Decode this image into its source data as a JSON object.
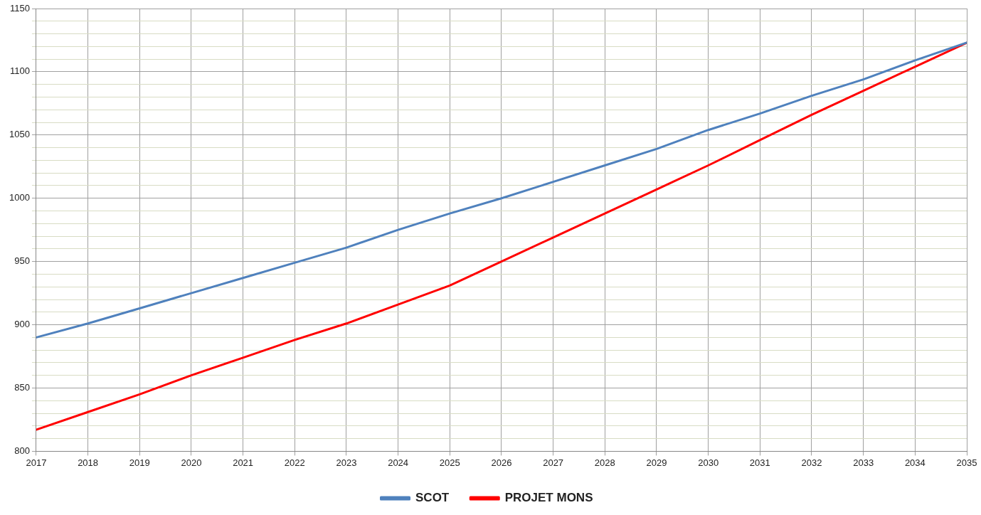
{
  "chart_data": {
    "type": "line",
    "x": [
      2017,
      2018,
      2019,
      2020,
      2021,
      2022,
      2023,
      2024,
      2025,
      2026,
      2027,
      2028,
      2029,
      2030,
      2031,
      2032,
      2033,
      2034,
      2035
    ],
    "series": [
      {
        "name": "SCOT",
        "color": "#4f81bd",
        "values": [
          890,
          901,
          913,
          925,
          937,
          949,
          961,
          975,
          988,
          1000,
          1013,
          1026,
          1039,
          1054,
          1067,
          1081,
          1094,
          1109,
          1123
        ]
      },
      {
        "name": "PROJET MONS",
        "color": "#ff0000",
        "values": [
          817,
          831,
          845,
          860,
          874,
          888,
          901,
          916,
          931,
          950,
          969,
          988,
          1007,
          1026,
          1046,
          1066,
          1085,
          1104,
          1123
        ]
      }
    ],
    "xlim": [
      2017,
      2035
    ],
    "xticks": [
      2017,
      2018,
      2019,
      2020,
      2021,
      2022,
      2023,
      2024,
      2025,
      2026,
      2027,
      2028,
      2029,
      2030,
      2031,
      2032,
      2033,
      2034,
      2035
    ],
    "ylim": [
      800,
      1150
    ],
    "yticks": [
      800,
      {
        "value": 810,
        "label": null
      },
      {
        "value": 820,
        "label": null
      },
      {
        "value": 830,
        "label": null
      },
      {
        "value": 840,
        "label": null
      },
      850,
      {
        "value": 860,
        "label": null
      },
      {
        "value": 870,
        "label": null
      },
      {
        "value": 880,
        "label": null
      },
      {
        "value": 890,
        "label": null
      },
      900,
      {
        "value": 910,
        "label": null
      },
      {
        "value": 920,
        "label": null
      },
      {
        "value": 930,
        "label": null
      },
      {
        "value": 940,
        "label": null
      },
      950,
      {
        "value": 960,
        "label": null
      },
      {
        "value": 970,
        "label": null
      },
      {
        "value": 980,
        "label": null
      },
      {
        "value": 990,
        "label": null
      },
      1000,
      {
        "value": 1010,
        "label": null
      },
      {
        "value": 1020,
        "label": null
      },
      {
        "value": 1030,
        "label": null
      },
      {
        "value": 1040,
        "label": null
      },
      1050,
      {
        "value": 1060,
        "label": null
      },
      {
        "value": 1070,
        "label": null
      },
      {
        "value": 1080,
        "label": null
      },
      {
        "value": 1090,
        "label": null
      },
      1100,
      {
        "value": 1110,
        "label": null
      },
      {
        "value": 1120,
        "label": null
      },
      {
        "value": 1130,
        "label": null
      },
      {
        "value": 1140,
        "label": null
      },
      1150
    ],
    "grid": true,
    "legend": "bottom",
    "marker": "none",
    "line_style": "solid"
  }
}
